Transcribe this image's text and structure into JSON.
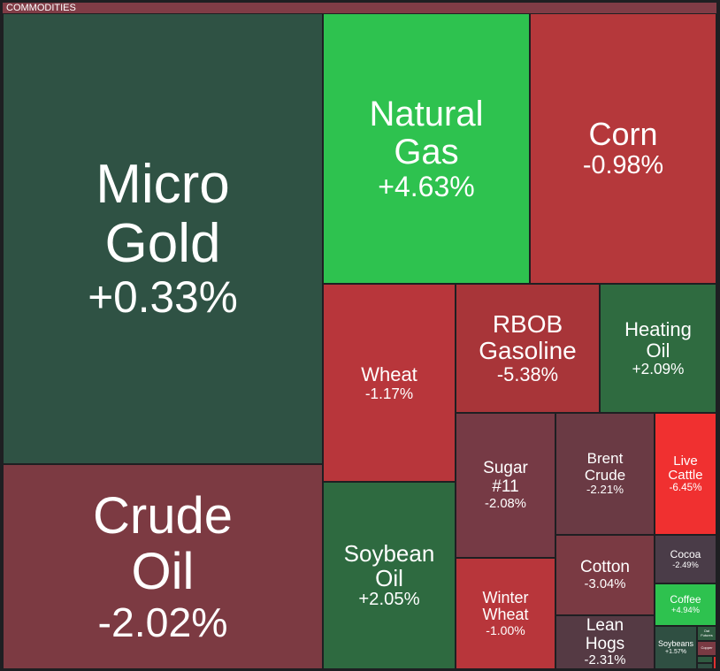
{
  "header": {
    "title": "COMMODITIES"
  },
  "chart_data": {
    "type": "treemap",
    "title": "COMMODITIES",
    "tiles": [
      {
        "name": "Micro Gold",
        "change": "+0.33%",
        "color": "#2f5244"
      },
      {
        "name": "Crude Oil",
        "change": "-2.02%",
        "color": "#7c3a42"
      },
      {
        "name": "Natural Gas",
        "change": "+4.63%",
        "color": "#2ec24f"
      },
      {
        "name": "Corn",
        "change": "-0.98%",
        "color": "#b5383b"
      },
      {
        "name": "Wheat",
        "change": "-1.17%",
        "color": "#b8363b"
      },
      {
        "name": "RBOB Gasoline",
        "change": "-5.38%",
        "color": "#a83539"
      },
      {
        "name": "Heating Oil",
        "change": "+2.09%",
        "color": "#2f6b40"
      },
      {
        "name": "Soybean Oil",
        "change": "+2.05%",
        "color": "#2e6a40"
      },
      {
        "name": "Sugar #11",
        "change": "-2.08%",
        "color": "#763a45"
      },
      {
        "name": "Brent Crude",
        "change": "-2.21%",
        "color": "#6a3a44"
      },
      {
        "name": "Live Cattle",
        "change": "-6.45%",
        "color": "#f03030"
      },
      {
        "name": "Winter Wheat",
        "change": "-1.00%",
        "color": "#b8363b"
      },
      {
        "name": "Cotton",
        "change": "-3.04%",
        "color": "#7a3a43"
      },
      {
        "name": "Lean Hogs",
        "change": "-2.31%",
        "color": "#553a44"
      },
      {
        "name": "Cocoa",
        "change": "-2.49%",
        "color": "#4a3c48"
      },
      {
        "name": "Coffee",
        "change": "+4.94%",
        "color": "#2ec24f"
      },
      {
        "name": "Soybeans",
        "change": "+1.57%",
        "color": "#2f4f42"
      },
      {
        "name": "Oat Futures",
        "change": "",
        "color": "#2f5a40"
      },
      {
        "name": "Copper",
        "change": "",
        "color": "#7a3a43"
      },
      {
        "name": "",
        "change": "",
        "color": "#2f5a40"
      },
      {
        "name": "",
        "change": "",
        "color": "#2f4f42"
      },
      {
        "name": "",
        "change": "",
        "color": "#e03030"
      }
    ]
  }
}
